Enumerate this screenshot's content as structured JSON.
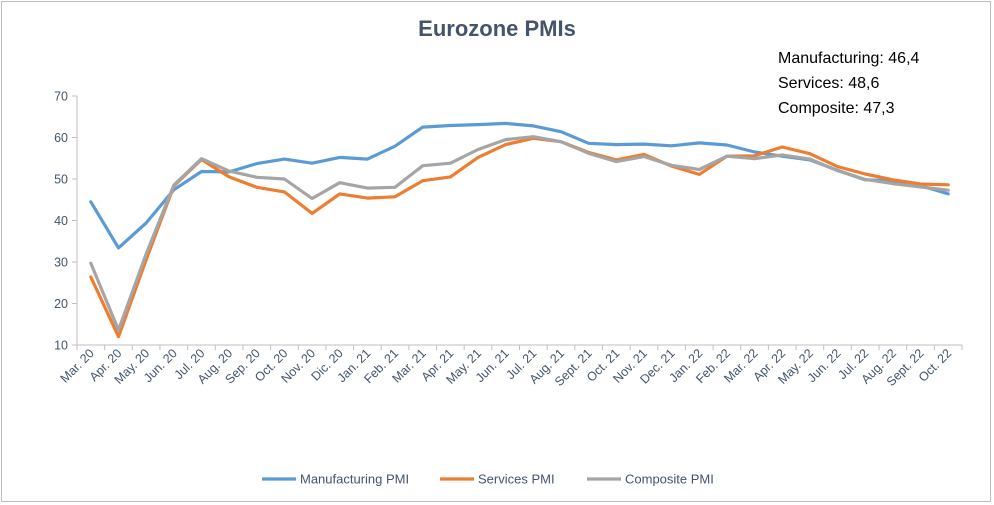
{
  "chart_data": {
    "type": "line",
    "title": "Eurozone PMIs",
    "annotations": [
      "Manufacturing: 46,4",
      "Services: 48,6",
      "Composite: 47,3"
    ],
    "xlabel": "",
    "ylabel": "",
    "ylim": [
      10,
      70
    ],
    "yticks": [
      10,
      20,
      30,
      40,
      50,
      60,
      70
    ],
    "grid": false,
    "legend_position": "bottom",
    "categories": [
      "Mar. 20",
      "Apr. 20",
      "May. 20",
      "Jun. 20",
      "Jul. 20",
      "Aug. 20",
      "Sep. 20",
      "Oct. 20",
      "Nov. 20",
      "Dic. 20",
      "Jan. 21",
      "Feb. 21",
      "Mar. 21",
      "Apr. 21",
      "May. 21",
      "Jun. 21",
      "Jul. 21",
      "Aug. 21",
      "Sept. 21",
      "Oct. 21",
      "Nov. 21",
      "Dec. 21",
      "Jan. 22",
      "Feb. 22",
      "Mar. 22",
      "Apr. 22",
      "May. 22",
      "Jun. 22",
      "Jul. 22",
      "Aug. 22",
      "Sept. 22",
      "Oct. 22"
    ],
    "series": [
      {
        "name": "Manufacturing PMI",
        "color": "#5b9bd5",
        "values": [
          44.5,
          33.4,
          39.4,
          47.4,
          51.8,
          51.7,
          53.7,
          54.8,
          53.8,
          55.2,
          54.8,
          57.9,
          62.5,
          62.9,
          63.1,
          63.4,
          62.8,
          61.4,
          58.6,
          58.3,
          58.4,
          58.0,
          58.7,
          58.2,
          56.5,
          55.5,
          54.6,
          52.1,
          49.8,
          49.6,
          48.4,
          46.4
        ]
      },
      {
        "name": "Services PMI",
        "color": "#ed7d31",
        "values": [
          26.4,
          12.0,
          30.5,
          48.3,
          54.7,
          50.5,
          48.0,
          46.9,
          41.7,
          46.4,
          45.4,
          45.7,
          49.6,
          50.5,
          55.2,
          58.3,
          59.8,
          59.0,
          56.4,
          54.6,
          55.9,
          53.1,
          51.1,
          55.5,
          55.6,
          57.7,
          56.1,
          53.0,
          51.2,
          49.8,
          48.8,
          48.6
        ]
      },
      {
        "name": "Composite PMI",
        "color": "#a5a5a5",
        "values": [
          29.7,
          13.6,
          31.9,
          48.5,
          54.9,
          51.9,
          50.4,
          50.0,
          45.3,
          49.1,
          47.8,
          48.0,
          53.2,
          53.8,
          57.1,
          59.5,
          60.2,
          59.0,
          56.2,
          54.2,
          55.4,
          53.3,
          52.3,
          55.5,
          54.9,
          55.8,
          54.8,
          52.0,
          49.9,
          48.9,
          48.1,
          47.3
        ]
      }
    ]
  }
}
